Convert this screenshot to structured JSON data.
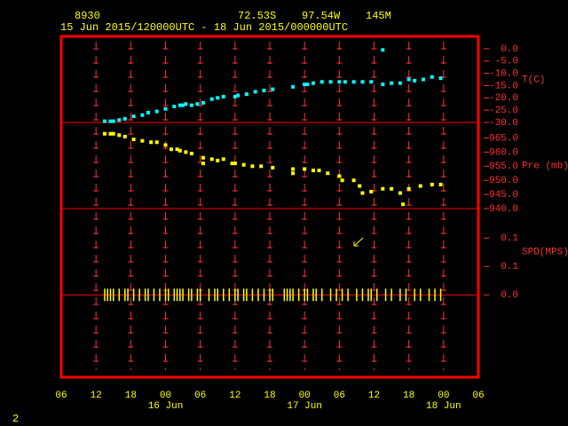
{
  "header": {
    "station": "8930",
    "lat": "72.53S",
    "lon": "97.54W",
    "elev": "145M",
    "period": "15 Jun 2015/120000UTC - 18 Jun 2015/000000UTC",
    "page": "2"
  },
  "chart_data": [
    {
      "type": "scatter",
      "y_label": "T(C)",
      "color": "#00ffff",
      "x": [
        13.5,
        14.5,
        15,
        16,
        17,
        18.5,
        20,
        21,
        22.5,
        24,
        25.5,
        26.5,
        27,
        27.5,
        28.5,
        29.5,
        30.5,
        32,
        33,
        34,
        36,
        36.5,
        38,
        39.5,
        41,
        42.5,
        46,
        48,
        48.5,
        49.5,
        51,
        52.5,
        54,
        55,
        56.5,
        58,
        59.5,
        61.5,
        61.5,
        63,
        64.5,
        66,
        67,
        68.5,
        70,
        71.5
      ],
      "values": [
        -29.5,
        -29.5,
        -29.5,
        -29,
        -28.5,
        -27.5,
        -27,
        -26,
        -25.5,
        -24.5,
        -23.5,
        -23,
        -23,
        -22.5,
        -23,
        -22.5,
        -22,
        -20.5,
        -20,
        -19.5,
        -19.5,
        -19,
        -18.5,
        -17.5,
        -17,
        -16.5,
        -15.5,
        -14.5,
        -14.5,
        -14,
        -13.5,
        -13.5,
        -13.5,
        -13.5,
        -13.5,
        -13.5,
        -13.5,
        -0.5,
        -14.5,
        -14,
        -14,
        -12.5,
        -13,
        -12.5,
        -11.5,
        -12
      ],
      "xlim": [
        6,
        78
      ],
      "ylim": [
        -30,
        5
      ],
      "yticks": [
        {
          "value": 0,
          "label": "0.0"
        },
        {
          "value": -5,
          "label": "-5.0"
        },
        {
          "value": -10,
          "label": "-10.0"
        },
        {
          "value": -15,
          "label": "-15.0"
        },
        {
          "value": -20,
          "label": "-20.0"
        },
        {
          "value": -25,
          "label": "-25.0"
        },
        {
          "value": -30,
          "label": "-30.0"
        }
      ]
    },
    {
      "type": "scatter",
      "y_label": "Pre (mb)",
      "color": "#ffff00",
      "x": [
        13.5,
        14.5,
        15,
        16,
        17,
        18.5,
        20,
        21.5,
        22.5,
        24,
        25,
        26,
        26.5,
        27.5,
        28.5,
        30.5,
        30.5,
        32,
        33,
        34,
        35.5,
        36,
        37.5,
        39,
        40.5,
        42.5,
        46,
        46,
        48,
        49.5,
        50.5,
        52,
        54,
        54.5,
        56.5,
        57.5,
        58,
        59.5,
        61.5,
        63,
        64.5,
        65,
        66,
        68,
        70,
        71.5
      ],
      "values": [
        966.5,
        966.5,
        966.5,
        966,
        965.5,
        964.5,
        964,
        963.5,
        963.5,
        962.5,
        961,
        961,
        960.5,
        960,
        959.5,
        958,
        956,
        957.5,
        957,
        957.5,
        956,
        956,
        955.5,
        955,
        955,
        954.5,
        954,
        952.5,
        954,
        953.5,
        953.5,
        952.5,
        951.5,
        950,
        950,
        948,
        945.5,
        946,
        947,
        947,
        945.5,
        941.5,
        947,
        948,
        948.5,
        948.5
      ],
      "xlim": [
        6,
        78
      ],
      "ylim": [
        940,
        970.5
      ],
      "yticks": [
        {
          "value": 965,
          "label": "965.0"
        },
        {
          "value": 960,
          "label": "960.0"
        },
        {
          "value": 955,
          "label": "955.0"
        },
        {
          "value": 950,
          "label": "950.0"
        },
        {
          "value": 945,
          "label": "945.0"
        },
        {
          "value": 940,
          "label": "940.0"
        }
      ]
    },
    {
      "type": "stick",
      "y_label": "SPD(MPS)",
      "color": "#ffff00",
      "x": [
        13.5,
        14,
        14.5,
        15,
        16,
        17,
        17.5,
        18.5,
        19.5,
        20.5,
        21,
        22,
        23,
        24,
        24.5,
        25.5,
        26,
        26.5,
        27,
        28,
        28.5,
        29.5,
        30,
        31.5,
        32.5,
        33,
        34,
        35,
        36,
        36.5,
        37.5,
        38,
        39,
        40,
        41,
        42,
        42.5,
        44.5,
        45,
        45.5,
        46,
        47,
        48,
        48.5,
        49.5,
        50,
        51,
        52.5,
        53.5,
        54.5,
        55.5,
        57,
        58,
        59,
        59.5,
        60.5,
        62,
        63,
        64.5,
        65.5,
        67,
        68,
        69.5,
        70.5,
        71.5
      ],
      "values": [
        0,
        0,
        0,
        0,
        0,
        0,
        0,
        0,
        0,
        0,
        0,
        0,
        0,
        0,
        0,
        0,
        0,
        0,
        0,
        0,
        0,
        0,
        0,
        0,
        0,
        0,
        0,
        0,
        0,
        0,
        0,
        0,
        0,
        0,
        0,
        0,
        0,
        0,
        0,
        0,
        0,
        0,
        0,
        0,
        0,
        0,
        0,
        0,
        0,
        0,
        0,
        0,
        0,
        0,
        0,
        0,
        0,
        0,
        0,
        0,
        0,
        0,
        0,
        0,
        0
      ],
      "xlim": [
        6,
        78
      ],
      "ylim": [
        -0.145,
        0.152
      ],
      "yticks": [
        {
          "value": 0.1,
          "label": "0.1"
        },
        {
          "value": 0.05,
          "label": "0.1"
        },
        {
          "value": 0,
          "label": "0.0"
        }
      ],
      "xticks": [
        {
          "value": 6,
          "label": "06"
        },
        {
          "value": 12,
          "label": "12"
        },
        {
          "value": 18,
          "label": "18"
        },
        {
          "value": 24,
          "label": "00"
        },
        {
          "value": 30,
          "label": "06"
        },
        {
          "value": 36,
          "label": "12"
        },
        {
          "value": 42,
          "label": "18"
        },
        {
          "value": 48,
          "label": "00"
        },
        {
          "value": 54,
          "label": "06"
        },
        {
          "value": 60,
          "label": "12"
        },
        {
          "value": 66,
          "label": "18"
        },
        {
          "value": 72,
          "label": "00"
        },
        {
          "value": 78,
          "label": "06"
        }
      ],
      "day_labels": [
        {
          "value": 24,
          "label": "16 Jun"
        },
        {
          "value": 48,
          "label": "17 Jun"
        },
        {
          "value": 72,
          "label": "18 Jun"
        }
      ]
    }
  ]
}
